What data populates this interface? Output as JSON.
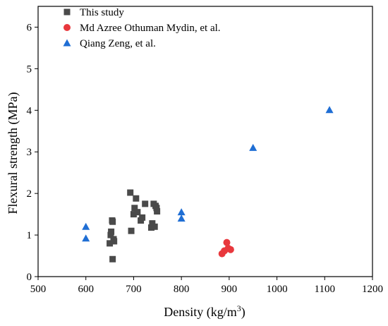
{
  "chart_data": {
    "type": "scatter",
    "xlabel_main": "Density (kg/m",
    "xlabel_sup": "3",
    "xlabel_end": ")",
    "ylabel": "Flexural strength (MPa)",
    "xlim": [
      500,
      1200
    ],
    "ylim": [
      0,
      6.5
    ],
    "xticks": [
      500,
      600,
      700,
      800,
      900,
      1000,
      1100,
      1200
    ],
    "yticks": [
      0,
      1,
      2,
      3,
      4,
      5,
      6
    ],
    "legend_position": "top-left",
    "series": [
      {
        "name": "This study",
        "marker": "square",
        "color": "#4a4a4a",
        "points": [
          [
            650,
            0.8
          ],
          [
            652,
            1.0
          ],
          [
            653,
            1.08
          ],
          [
            655,
            1.35
          ],
          [
            656,
            1.32
          ],
          [
            656,
            0.42
          ],
          [
            658,
            0.9
          ],
          [
            659,
            0.85
          ],
          [
            693,
            2.02
          ],
          [
            695,
            1.1
          ],
          [
            700,
            1.5
          ],
          [
            702,
            1.65
          ],
          [
            705,
            1.88
          ],
          [
            708,
            1.55
          ],
          [
            715,
            1.35
          ],
          [
            718,
            1.42
          ],
          [
            724,
            1.75
          ],
          [
            737,
            1.18
          ],
          [
            739,
            1.28
          ],
          [
            742,
            1.75
          ],
          [
            744,
            1.2
          ],
          [
            746,
            1.7
          ],
          [
            748,
            1.65
          ],
          [
            749,
            1.57
          ]
        ]
      },
      {
        "name": "Md Azree Othuman Mydin, et al.",
        "marker": "circle",
        "color": "#e8383d",
        "points": [
          [
            885,
            0.55
          ],
          [
            890,
            0.62
          ],
          [
            895,
            0.82
          ],
          [
            898,
            0.68
          ],
          [
            903,
            0.65
          ]
        ]
      },
      {
        "name": "Qiang Zeng, et al.",
        "marker": "triangle",
        "color": "#1f6ed4",
        "points": [
          [
            600,
            1.2
          ],
          [
            600,
            0.92
          ],
          [
            800,
            1.55
          ],
          [
            800,
            1.4
          ],
          [
            950,
            3.1
          ],
          [
            1110,
            4.01
          ]
        ]
      }
    ]
  }
}
